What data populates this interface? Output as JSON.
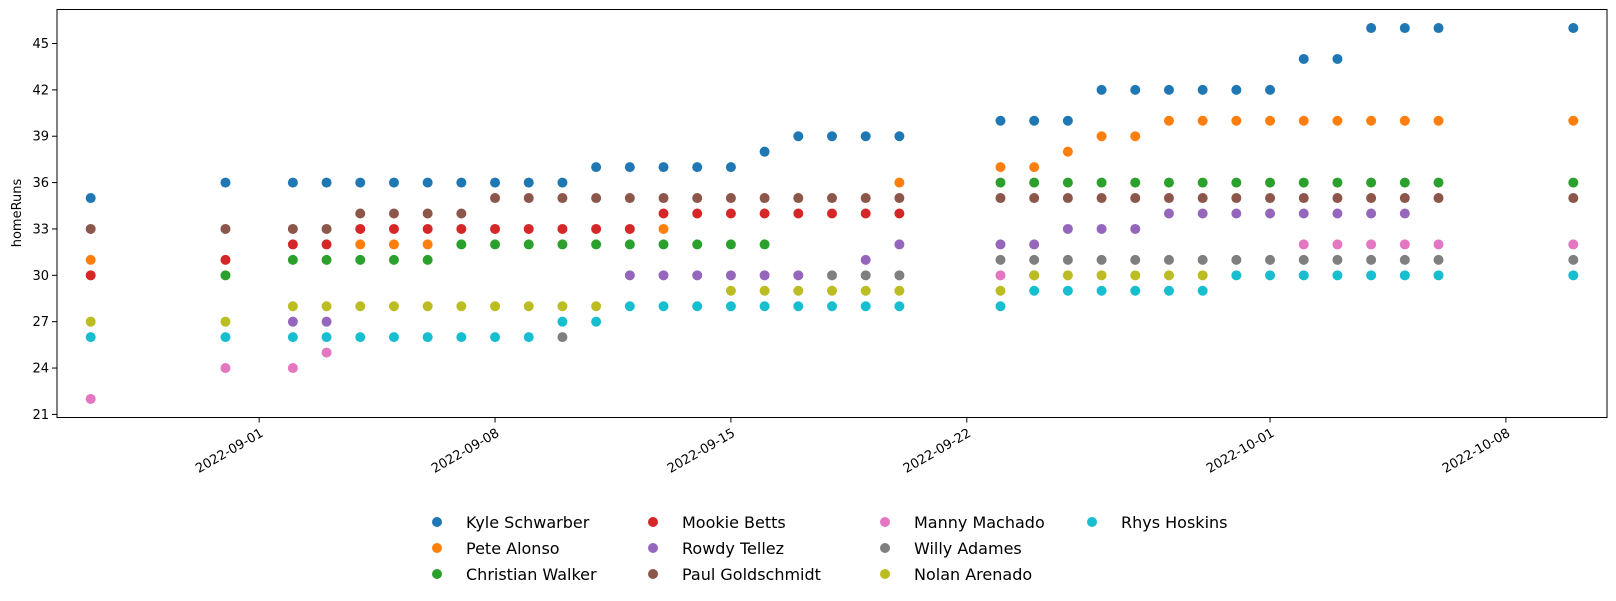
{
  "chart_data": {
    "type": "scatter",
    "title": "",
    "xlabel": "",
    "ylabel": "homeRuns",
    "x_is_date": true,
    "xlim": [
      "2022-08-26",
      "2022-10-11"
    ],
    "ylim": [
      20.8,
      47.2
    ],
    "yticks": [
      21,
      24,
      27,
      30,
      33,
      36,
      39,
      42,
      45
    ],
    "xticks": [
      "2022-09-01",
      "2022-09-08",
      "2022-09-15",
      "2022-09-22",
      "2022-10-01",
      "2022-10-08"
    ],
    "grid": false,
    "legend_position": "bottom-center",
    "legend_columns": 4,
    "series": [
      {
        "name": "Kyle Schwarber",
        "color": "#1f77b4",
        "points": [
          [
            "2022-08-27",
            35
          ],
          [
            "2022-08-31",
            36
          ],
          [
            "2022-09-02",
            36
          ],
          [
            "2022-09-03",
            36
          ],
          [
            "2022-09-04",
            36
          ],
          [
            "2022-09-05",
            36
          ],
          [
            "2022-09-06",
            36
          ],
          [
            "2022-09-07",
            36
          ],
          [
            "2022-09-08",
            36
          ],
          [
            "2022-09-09",
            36
          ],
          [
            "2022-09-10",
            36
          ],
          [
            "2022-09-11",
            37
          ],
          [
            "2022-09-12",
            37
          ],
          [
            "2022-09-13",
            37
          ],
          [
            "2022-09-14",
            37
          ],
          [
            "2022-09-15",
            37
          ],
          [
            "2022-09-16",
            38
          ],
          [
            "2022-09-17",
            39
          ],
          [
            "2022-09-18",
            39
          ],
          [
            "2022-09-19",
            39
          ],
          [
            "2022-09-20",
            39
          ],
          [
            "2022-09-23",
            40
          ],
          [
            "2022-09-24",
            40
          ],
          [
            "2022-09-25",
            40
          ],
          [
            "2022-09-26",
            42
          ],
          [
            "2022-09-27",
            42
          ],
          [
            "2022-09-28",
            42
          ],
          [
            "2022-09-29",
            42
          ],
          [
            "2022-09-30",
            42
          ],
          [
            "2022-10-01",
            42
          ],
          [
            "2022-10-02",
            44
          ],
          [
            "2022-10-03",
            44
          ],
          [
            "2022-10-04",
            46
          ],
          [
            "2022-10-05",
            46
          ],
          [
            "2022-10-06",
            46
          ],
          [
            "2022-10-10",
            46
          ]
        ]
      },
      {
        "name": "Pete Alonso",
        "color": "#ff7f0e",
        "points": [
          [
            "2022-08-27",
            31
          ],
          [
            "2022-09-04",
            32
          ],
          [
            "2022-09-05",
            32
          ],
          [
            "2022-09-06",
            32
          ],
          [
            "2022-09-13",
            33
          ],
          [
            "2022-09-20",
            36
          ],
          [
            "2022-09-23",
            37
          ],
          [
            "2022-09-24",
            37
          ],
          [
            "2022-09-25",
            38
          ],
          [
            "2022-09-26",
            39
          ],
          [
            "2022-09-27",
            39
          ],
          [
            "2022-09-28",
            40
          ],
          [
            "2022-09-29",
            40
          ],
          [
            "2022-09-30",
            40
          ],
          [
            "2022-10-01",
            40
          ],
          [
            "2022-10-02",
            40
          ],
          [
            "2022-10-03",
            40
          ],
          [
            "2022-10-04",
            40
          ],
          [
            "2022-10-05",
            40
          ],
          [
            "2022-10-06",
            40
          ],
          [
            "2022-10-10",
            40
          ]
        ]
      },
      {
        "name": "Christian Walker",
        "color": "#2ca02c",
        "points": [
          [
            "2022-08-31",
            30
          ],
          [
            "2022-09-02",
            31
          ],
          [
            "2022-09-03",
            31
          ],
          [
            "2022-09-04",
            31
          ],
          [
            "2022-09-05",
            31
          ],
          [
            "2022-09-06",
            31
          ],
          [
            "2022-09-07",
            32
          ],
          [
            "2022-09-08",
            32
          ],
          [
            "2022-09-09",
            32
          ],
          [
            "2022-09-10",
            32
          ],
          [
            "2022-09-11",
            32
          ],
          [
            "2022-09-12",
            32
          ],
          [
            "2022-09-13",
            32
          ],
          [
            "2022-09-14",
            32
          ],
          [
            "2022-09-15",
            32
          ],
          [
            "2022-09-16",
            32
          ],
          [
            "2022-09-23",
            36
          ],
          [
            "2022-09-24",
            36
          ],
          [
            "2022-09-25",
            36
          ],
          [
            "2022-09-26",
            36
          ],
          [
            "2022-09-27",
            36
          ],
          [
            "2022-09-28",
            36
          ],
          [
            "2022-09-29",
            36
          ],
          [
            "2022-09-30",
            36
          ],
          [
            "2022-10-01",
            36
          ],
          [
            "2022-10-02",
            36
          ],
          [
            "2022-10-03",
            36
          ],
          [
            "2022-10-04",
            36
          ],
          [
            "2022-10-05",
            36
          ],
          [
            "2022-10-06",
            36
          ],
          [
            "2022-10-10",
            36
          ]
        ]
      },
      {
        "name": "Mookie Betts",
        "color": "#d62728",
        "points": [
          [
            "2022-08-27",
            30
          ],
          [
            "2022-08-31",
            31
          ],
          [
            "2022-09-02",
            32
          ],
          [
            "2022-09-03",
            32
          ],
          [
            "2022-09-04",
            33
          ],
          [
            "2022-09-05",
            33
          ],
          [
            "2022-09-06",
            33
          ],
          [
            "2022-09-07",
            33
          ],
          [
            "2022-09-08",
            33
          ],
          [
            "2022-09-09",
            33
          ],
          [
            "2022-09-10",
            33
          ],
          [
            "2022-09-11",
            33
          ],
          [
            "2022-09-12",
            33
          ],
          [
            "2022-09-13",
            34
          ],
          [
            "2022-09-14",
            34
          ],
          [
            "2022-09-15",
            34
          ],
          [
            "2022-09-16",
            34
          ],
          [
            "2022-09-17",
            34
          ],
          [
            "2022-09-18",
            34
          ],
          [
            "2022-09-19",
            34
          ],
          [
            "2022-09-20",
            34
          ]
        ]
      },
      {
        "name": "Rowdy Tellez",
        "color": "#9467bd",
        "points": [
          [
            "2022-09-02",
            27
          ],
          [
            "2022-09-03",
            27
          ],
          [
            "2022-09-12",
            30
          ],
          [
            "2022-09-13",
            30
          ],
          [
            "2022-09-14",
            30
          ],
          [
            "2022-09-15",
            30
          ],
          [
            "2022-09-16",
            30
          ],
          [
            "2022-09-17",
            30
          ],
          [
            "2022-09-19",
            31
          ],
          [
            "2022-09-20",
            32
          ],
          [
            "2022-09-23",
            32
          ],
          [
            "2022-09-24",
            32
          ],
          [
            "2022-09-25",
            33
          ],
          [
            "2022-09-26",
            33
          ],
          [
            "2022-09-27",
            33
          ],
          [
            "2022-09-28",
            34
          ],
          [
            "2022-09-29",
            34
          ],
          [
            "2022-09-30",
            34
          ],
          [
            "2022-10-01",
            34
          ],
          [
            "2022-10-02",
            34
          ],
          [
            "2022-10-03",
            34
          ],
          [
            "2022-10-04",
            34
          ],
          [
            "2022-10-05",
            34
          ]
        ]
      },
      {
        "name": "Paul Goldschmidt",
        "color": "#8c564b",
        "points": [
          [
            "2022-08-27",
            33
          ],
          [
            "2022-08-31",
            33
          ],
          [
            "2022-09-02",
            33
          ],
          [
            "2022-09-03",
            33
          ],
          [
            "2022-09-04",
            34
          ],
          [
            "2022-09-05",
            34
          ],
          [
            "2022-09-06",
            34
          ],
          [
            "2022-09-07",
            34
          ],
          [
            "2022-09-08",
            35
          ],
          [
            "2022-09-09",
            35
          ],
          [
            "2022-09-10",
            35
          ],
          [
            "2022-09-11",
            35
          ],
          [
            "2022-09-12",
            35
          ],
          [
            "2022-09-13",
            35
          ],
          [
            "2022-09-14",
            35
          ],
          [
            "2022-09-15",
            35
          ],
          [
            "2022-09-16",
            35
          ],
          [
            "2022-09-17",
            35
          ],
          [
            "2022-09-18",
            35
          ],
          [
            "2022-09-19",
            35
          ],
          [
            "2022-09-20",
            35
          ],
          [
            "2022-09-23",
            35
          ],
          [
            "2022-09-24",
            35
          ],
          [
            "2022-09-25",
            35
          ],
          [
            "2022-09-26",
            35
          ],
          [
            "2022-09-27",
            35
          ],
          [
            "2022-09-28",
            35
          ],
          [
            "2022-09-29",
            35
          ],
          [
            "2022-09-30",
            35
          ],
          [
            "2022-10-01",
            35
          ],
          [
            "2022-10-02",
            35
          ],
          [
            "2022-10-03",
            35
          ],
          [
            "2022-10-04",
            35
          ],
          [
            "2022-10-05",
            35
          ],
          [
            "2022-10-06",
            35
          ],
          [
            "2022-10-10",
            35
          ]
        ]
      },
      {
        "name": "Manny Machado",
        "color": "#e377c2",
        "points": [
          [
            "2022-08-27",
            22
          ],
          [
            "2022-08-31",
            24
          ],
          [
            "2022-09-02",
            24
          ],
          [
            "2022-09-03",
            25
          ],
          [
            "2022-09-23",
            30
          ],
          [
            "2022-09-24",
            30
          ],
          [
            "2022-10-02",
            32
          ],
          [
            "2022-10-03",
            32
          ],
          [
            "2022-10-04",
            32
          ],
          [
            "2022-10-05",
            32
          ],
          [
            "2022-10-06",
            32
          ],
          [
            "2022-10-10",
            32
          ]
        ]
      },
      {
        "name": "Willy Adames",
        "color": "#7f7f7f",
        "points": [
          [
            "2022-09-10",
            26
          ],
          [
            "2022-09-18",
            30
          ],
          [
            "2022-09-19",
            30
          ],
          [
            "2022-09-20",
            30
          ],
          [
            "2022-09-23",
            31
          ],
          [
            "2022-09-24",
            31
          ],
          [
            "2022-09-25",
            31
          ],
          [
            "2022-09-26",
            31
          ],
          [
            "2022-09-27",
            31
          ],
          [
            "2022-09-28",
            31
          ],
          [
            "2022-09-29",
            31
          ],
          [
            "2022-09-30",
            31
          ],
          [
            "2022-10-01",
            31
          ],
          [
            "2022-10-02",
            31
          ],
          [
            "2022-10-03",
            31
          ],
          [
            "2022-10-04",
            31
          ],
          [
            "2022-10-05",
            31
          ],
          [
            "2022-10-06",
            31
          ],
          [
            "2022-10-10",
            31
          ]
        ]
      },
      {
        "name": "Nolan Arenado",
        "color": "#bcbd22",
        "points": [
          [
            "2022-08-27",
            27
          ],
          [
            "2022-08-31",
            27
          ],
          [
            "2022-09-02",
            28
          ],
          [
            "2022-09-03",
            28
          ],
          [
            "2022-09-04",
            28
          ],
          [
            "2022-09-05",
            28
          ],
          [
            "2022-09-06",
            28
          ],
          [
            "2022-09-07",
            28
          ],
          [
            "2022-09-08",
            28
          ],
          [
            "2022-09-09",
            28
          ],
          [
            "2022-09-10",
            28
          ],
          [
            "2022-09-11",
            28
          ],
          [
            "2022-09-15",
            29
          ],
          [
            "2022-09-16",
            29
          ],
          [
            "2022-09-17",
            29
          ],
          [
            "2022-09-18",
            29
          ],
          [
            "2022-09-19",
            29
          ],
          [
            "2022-09-20",
            29
          ],
          [
            "2022-09-23",
            29
          ],
          [
            "2022-09-24",
            30
          ],
          [
            "2022-09-25",
            30
          ],
          [
            "2022-09-26",
            30
          ],
          [
            "2022-09-27",
            30
          ],
          [
            "2022-09-28",
            30
          ],
          [
            "2022-09-29",
            30
          ]
        ]
      },
      {
        "name": "Rhys Hoskins",
        "color": "#17becf",
        "points": [
          [
            "2022-08-27",
            26
          ],
          [
            "2022-08-31",
            26
          ],
          [
            "2022-09-02",
            26
          ],
          [
            "2022-09-03",
            26
          ],
          [
            "2022-09-04",
            26
          ],
          [
            "2022-09-05",
            26
          ],
          [
            "2022-09-06",
            26
          ],
          [
            "2022-09-07",
            26
          ],
          [
            "2022-09-08",
            26
          ],
          [
            "2022-09-09",
            26
          ],
          [
            "2022-09-10",
            27
          ],
          [
            "2022-09-11",
            27
          ],
          [
            "2022-09-12",
            28
          ],
          [
            "2022-09-13",
            28
          ],
          [
            "2022-09-14",
            28
          ],
          [
            "2022-09-15",
            28
          ],
          [
            "2022-09-16",
            28
          ],
          [
            "2022-09-17",
            28
          ],
          [
            "2022-09-18",
            28
          ],
          [
            "2022-09-19",
            28
          ],
          [
            "2022-09-20",
            28
          ],
          [
            "2022-09-23",
            28
          ],
          [
            "2022-09-24",
            29
          ],
          [
            "2022-09-25",
            29
          ],
          [
            "2022-09-26",
            29
          ],
          [
            "2022-09-27",
            29
          ],
          [
            "2022-09-28",
            29
          ],
          [
            "2022-09-29",
            29
          ],
          [
            "2022-09-30",
            30
          ],
          [
            "2022-10-01",
            30
          ],
          [
            "2022-10-02",
            30
          ],
          [
            "2022-10-03",
            30
          ],
          [
            "2022-10-04",
            30
          ],
          [
            "2022-10-05",
            30
          ],
          [
            "2022-10-06",
            30
          ],
          [
            "2022-10-10",
            30
          ]
        ]
      }
    ]
  }
}
